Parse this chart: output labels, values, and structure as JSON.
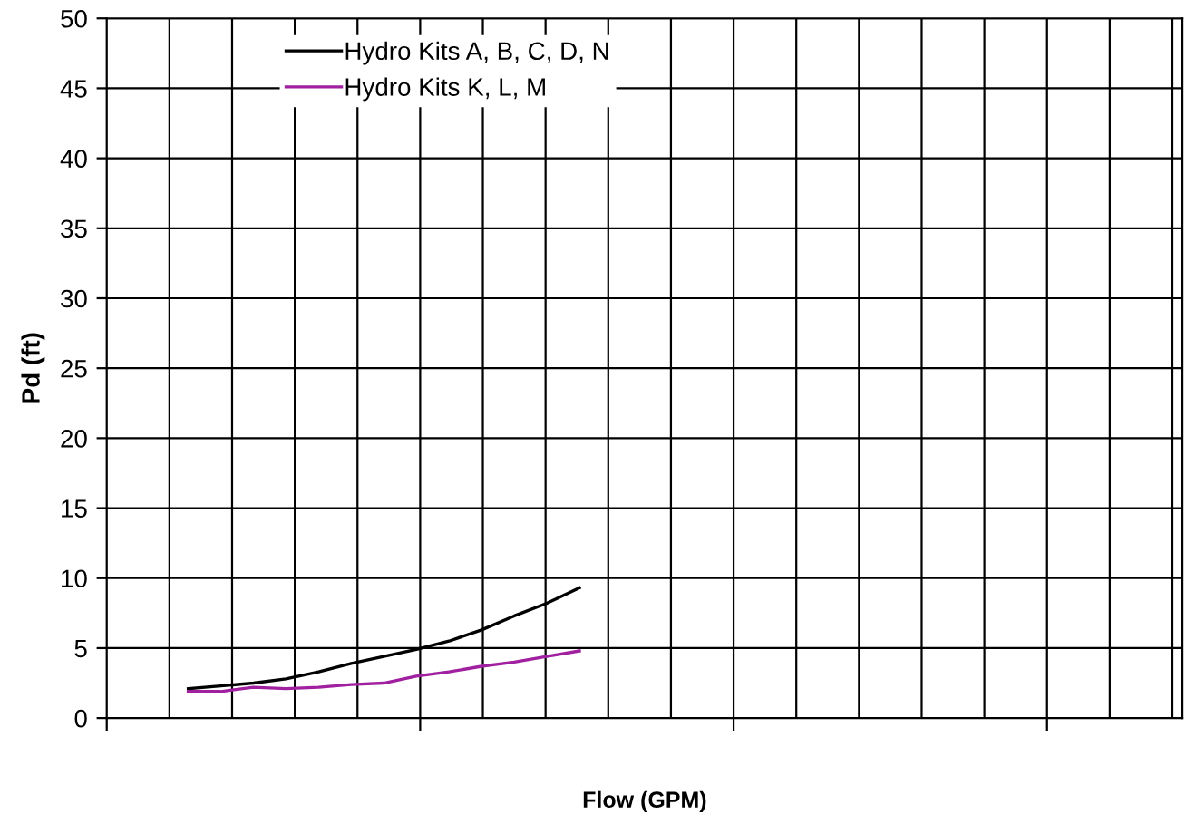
{
  "chart_data": {
    "type": "line",
    "xlabel": "Flow (GPM)",
    "ylabel": "Pd (ft)",
    "categories": [
      null,
      null,
      null,
      null,
      null,
      null,
      null,
      null,
      null,
      null,
      null,
      null,
      null,
      null,
      null,
      null,
      null,
      null,
      null,
      null,
      null,
      null,
      null,
      null,
      null,
      null,
      null,
      null,
      null,
      null,
      null,
      null,
      null
    ],
    "ylim": [
      0,
      50
    ],
    "yticks": [
      0,
      5,
      10,
      15,
      20,
      25,
      30,
      35,
      40,
      45,
      50
    ],
    "grid": true,
    "legend": "top left",
    "tick_labels": "y",
    "series": [
      {
        "name": "Hydro Kits A, B, C, D, N",
        "color": "#000000",
        "values": [
          null,
          null,
          2.1,
          2.3,
          2.5,
          2.8,
          3.3,
          3.9,
          4.4,
          4.9,
          5.5,
          6.3,
          7.3,
          8.2,
          9.3,
          null,
          null,
          null,
          null,
          null,
          null,
          null,
          null,
          null,
          null,
          null,
          null,
          null,
          null,
          null,
          null,
          null,
          null
        ]
      },
      {
        "name": "Hydro Kits K, L, M",
        "color": "#a020a0",
        "values": [
          null,
          null,
          1.9,
          1.9,
          2.2,
          2.1,
          2.2,
          2.4,
          2.5,
          3.0,
          3.3,
          3.7,
          4.0,
          4.4,
          4.8,
          null,
          null,
          null,
          null,
          null,
          null,
          null,
          null,
          null,
          null,
          null,
          null,
          null,
          null,
          null,
          null,
          null,
          null
        ]
      }
    ]
  }
}
